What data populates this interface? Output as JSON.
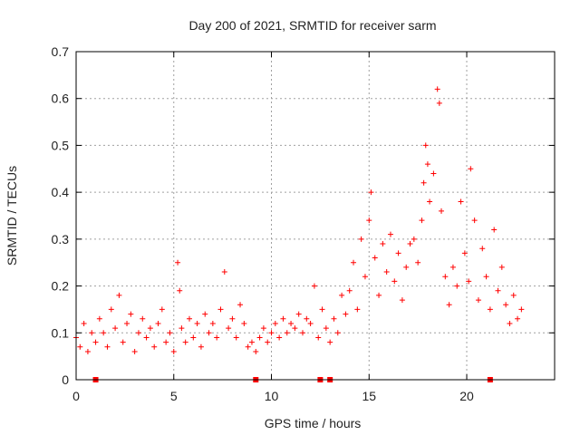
{
  "chart_data": {
    "type": "scatter",
    "title": "Day 200 of 2021, SRMTID for receiver sarm",
    "xlabel": "GPS time / hours",
    "ylabel": "SRMTID / TECUs",
    "xlim": [
      0,
      24.5
    ],
    "ylim": [
      0,
      0.7
    ],
    "xticks": [
      0,
      5,
      10,
      15,
      20
    ],
    "yticks": [
      0,
      0.1,
      0.2,
      0.3,
      0.4,
      0.5,
      0.6,
      0.7
    ],
    "xtick_labels": [
      "0",
      "5",
      "10",
      "15",
      "20"
    ],
    "ytick_labels": [
      "0",
      "0.1",
      "0.2",
      "0.3",
      "0.4",
      "0.5",
      "0.6",
      "0.7"
    ],
    "grid": true,
    "marker": "plus",
    "color": "#ff0000",
    "gap_markers_x": [
      1.0,
      9.2,
      12.5,
      13.0,
      21.2
    ],
    "series": [
      {
        "name": "SRMTID",
        "points": [
          [
            0.0,
            0.09
          ],
          [
            0.2,
            0.07
          ],
          [
            0.4,
            0.12
          ],
          [
            0.6,
            0.06
          ],
          [
            0.8,
            0.1
          ],
          [
            1.0,
            0.08
          ],
          [
            1.2,
            0.13
          ],
          [
            1.4,
            0.1
          ],
          [
            1.6,
            0.07
          ],
          [
            1.8,
            0.15
          ],
          [
            2.0,
            0.11
          ],
          [
            2.2,
            0.18
          ],
          [
            2.4,
            0.08
          ],
          [
            2.6,
            0.12
          ],
          [
            2.8,
            0.14
          ],
          [
            3.0,
            0.06
          ],
          [
            3.2,
            0.1
          ],
          [
            3.4,
            0.13
          ],
          [
            3.6,
            0.09
          ],
          [
            3.8,
            0.11
          ],
          [
            4.0,
            0.07
          ],
          [
            4.2,
            0.12
          ],
          [
            4.4,
            0.15
          ],
          [
            4.6,
            0.08
          ],
          [
            4.8,
            0.1
          ],
          [
            5.0,
            0.06
          ],
          [
            5.2,
            0.25
          ],
          [
            5.3,
            0.19
          ],
          [
            5.4,
            0.11
          ],
          [
            5.6,
            0.08
          ],
          [
            5.8,
            0.13
          ],
          [
            6.0,
            0.09
          ],
          [
            6.2,
            0.12
          ],
          [
            6.4,
            0.07
          ],
          [
            6.6,
            0.14
          ],
          [
            6.8,
            0.1
          ],
          [
            7.0,
            0.12
          ],
          [
            7.2,
            0.09
          ],
          [
            7.4,
            0.15
          ],
          [
            7.6,
            0.23
          ],
          [
            7.8,
            0.11
          ],
          [
            8.0,
            0.13
          ],
          [
            8.2,
            0.09
          ],
          [
            8.4,
            0.16
          ],
          [
            8.6,
            0.12
          ],
          [
            8.8,
            0.07
          ],
          [
            9.0,
            0.08
          ],
          [
            9.2,
            0.06
          ],
          [
            9.4,
            0.09
          ],
          [
            9.6,
            0.11
          ],
          [
            9.8,
            0.08
          ],
          [
            10.0,
            0.1
          ],
          [
            10.2,
            0.12
          ],
          [
            10.4,
            0.09
          ],
          [
            10.6,
            0.13
          ],
          [
            10.8,
            0.1
          ],
          [
            11.0,
            0.12
          ],
          [
            11.2,
            0.11
          ],
          [
            11.4,
            0.14
          ],
          [
            11.6,
            0.1
          ],
          [
            11.8,
            0.13
          ],
          [
            12.0,
            0.12
          ],
          [
            12.2,
            0.2
          ],
          [
            12.4,
            0.09
          ],
          [
            12.6,
            0.15
          ],
          [
            12.8,
            0.11
          ],
          [
            13.0,
            0.08
          ],
          [
            13.2,
            0.13
          ],
          [
            13.4,
            0.1
          ],
          [
            13.6,
            0.18
          ],
          [
            13.8,
            0.14
          ],
          [
            14.0,
            0.19
          ],
          [
            14.2,
            0.25
          ],
          [
            14.4,
            0.15
          ],
          [
            14.6,
            0.3
          ],
          [
            14.8,
            0.22
          ],
          [
            15.0,
            0.34
          ],
          [
            15.1,
            0.4
          ],
          [
            15.3,
            0.26
          ],
          [
            15.5,
            0.18
          ],
          [
            15.7,
            0.29
          ],
          [
            15.9,
            0.23
          ],
          [
            16.1,
            0.31
          ],
          [
            16.3,
            0.21
          ],
          [
            16.5,
            0.27
          ],
          [
            16.7,
            0.17
          ],
          [
            16.9,
            0.24
          ],
          [
            17.1,
            0.29
          ],
          [
            17.3,
            0.3
          ],
          [
            17.5,
            0.25
          ],
          [
            17.7,
            0.34
          ],
          [
            17.8,
            0.42
          ],
          [
            17.9,
            0.5
          ],
          [
            18.0,
            0.46
          ],
          [
            18.1,
            0.38
          ],
          [
            18.3,
            0.44
          ],
          [
            18.5,
            0.62
          ],
          [
            18.6,
            0.59
          ],
          [
            18.7,
            0.36
          ],
          [
            18.9,
            0.22
          ],
          [
            19.1,
            0.16
          ],
          [
            19.3,
            0.24
          ],
          [
            19.5,
            0.2
          ],
          [
            19.7,
            0.38
          ],
          [
            19.9,
            0.27
          ],
          [
            20.1,
            0.21
          ],
          [
            20.2,
            0.45
          ],
          [
            20.4,
            0.34
          ],
          [
            20.6,
            0.17
          ],
          [
            20.8,
            0.28
          ],
          [
            21.0,
            0.22
          ],
          [
            21.2,
            0.15
          ],
          [
            21.4,
            0.32
          ],
          [
            21.6,
            0.19
          ],
          [
            21.8,
            0.24
          ],
          [
            22.0,
            0.16
          ],
          [
            22.2,
            0.12
          ],
          [
            22.4,
            0.18
          ],
          [
            22.6,
            0.13
          ],
          [
            22.8,
            0.15
          ]
        ]
      }
    ]
  }
}
